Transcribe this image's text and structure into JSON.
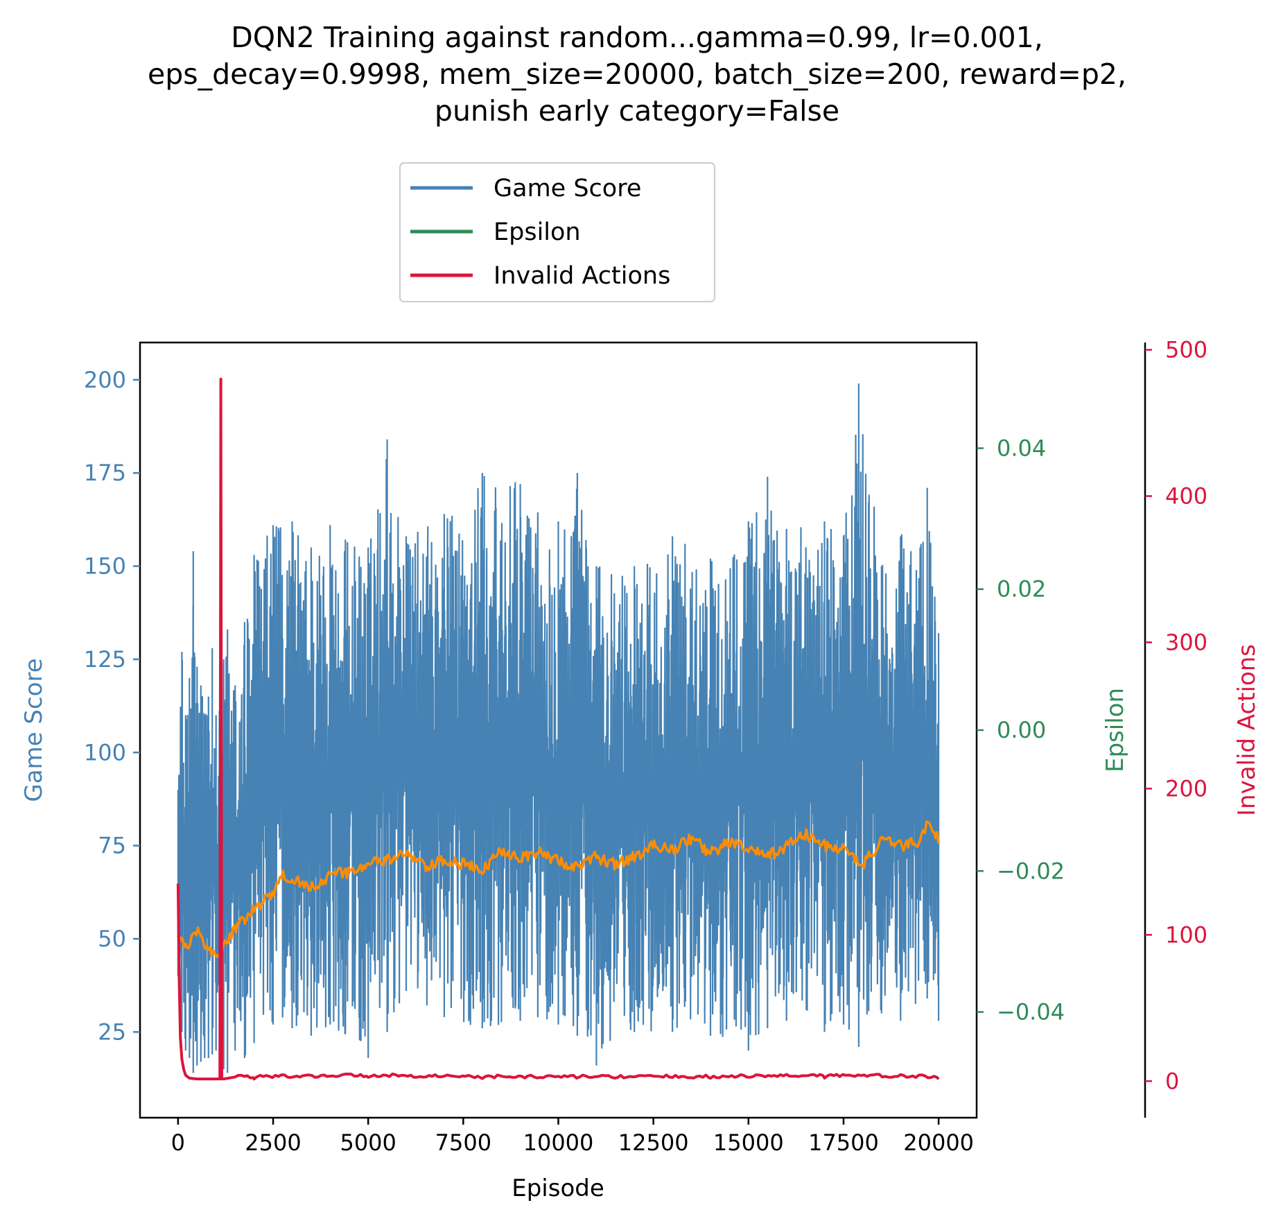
{
  "title_lines": [
    "DQN2 Training against random...gamma=0.99, lr=0.001,",
    "eps_decay=0.9998, mem_size=20000, batch_size=200, reward=p2,",
    "punish early category=False"
  ],
  "colors": {
    "game_score": "#4682b4",
    "epsilon": "#2e8b57",
    "invalid_actions": "#dc143c",
    "moving_average": "#ff8c00"
  },
  "chart_data": {
    "type": "line",
    "title": "DQN2 Training against random...gamma=0.99, lr=0.001, eps_decay=0.9998, mem_size=20000, batch_size=200, reward=p2, punish early category=False",
    "xlabel": "Episode",
    "xlim": [
      -1000,
      21000
    ],
    "x_ticks": [
      0,
      2500,
      5000,
      7500,
      10000,
      12500,
      15000,
      17500,
      20000
    ],
    "x_tick_labels": [
      "0",
      "2500",
      "5000",
      "7500",
      "10000",
      "12500",
      "15000",
      "17500",
      "20000"
    ],
    "axes": {
      "left": {
        "label": "Game Score",
        "ylim": [
          2,
          210
        ],
        "ticks": [
          25,
          50,
          75,
          100,
          125,
          150,
          175,
          200
        ],
        "tick_labels": [
          "25",
          "50",
          "75",
          "100",
          "125",
          "150",
          "175",
          "200"
        ]
      },
      "right1": {
        "label": "Epsilon",
        "ylim": [
          -0.055,
          0.055
        ],
        "ticks": [
          -0.04,
          -0.02,
          0.0,
          0.02,
          0.04
        ],
        "tick_labels": [
          "−0.04",
          "−0.02",
          "0.00",
          "0.02",
          "0.04"
        ]
      },
      "right2": {
        "label": "Invalid Actions",
        "ylim": [
          -25,
          505
        ],
        "ticks": [
          0,
          100,
          200,
          300,
          400,
          500
        ],
        "tick_labels": [
          "0",
          "100",
          "200",
          "300",
          "400",
          "500"
        ]
      }
    },
    "legend": {
      "position": "above plot, center",
      "entries": [
        "Game Score",
        "Epsilon",
        "Invalid Actions"
      ]
    },
    "series": [
      {
        "name": "Game Score",
        "axis": "left",
        "x": [
          0,
          100,
          200,
          300,
          400,
          500,
          600,
          700,
          800,
          900,
          1000,
          1100,
          1200,
          1300,
          1500,
          1750,
          2000,
          2500,
          3000,
          3500,
          4000,
          5000,
          5500,
          6000,
          7000,
          8000,
          9000,
          10000,
          10500,
          11000,
          12000,
          13000,
          14000,
          15000,
          15500,
          16000,
          17000,
          17500,
          17900,
          18500,
          19000,
          19700,
          20000
        ],
        "upper_envelope": [
          90,
          127,
          110,
          120,
          154,
          123,
          118,
          110,
          115,
          128,
          110,
          112,
          125,
          133,
          118,
          135,
          153,
          161,
          162,
          155,
          161,
          155,
          184,
          158,
          164,
          175,
          172,
          162,
          175,
          150,
          150,
          158,
          152,
          162,
          174,
          160,
          162,
          158,
          199,
          150,
          158,
          171,
          132
        ],
        "lower_envelope": [
          40,
          25,
          20,
          18,
          14,
          16,
          17,
          18,
          18,
          19,
          20,
          21,
          15,
          14,
          20,
          18,
          22,
          27,
          26,
          24,
          27,
          18,
          25,
          36,
          29,
          26,
          28,
          27,
          24,
          16,
          25,
          25,
          24,
          20,
          26,
          28,
          25,
          27,
          21,
          30,
          28,
          34,
          28
        ]
      },
      {
        "name": "",
        "axis": "left",
        "x": [
          0,
          250,
          500,
          750,
          1000,
          1250,
          1500,
          1750,
          2000,
          2500,
          2750,
          3000,
          3500,
          4000,
          4500,
          5000,
          5500,
          6000,
          6500,
          7000,
          7500,
          8000,
          8500,
          9000,
          9500,
          10000,
          10500,
          11000,
          11500,
          12000,
          12500,
          13000,
          13500,
          14000,
          14500,
          15000,
          15500,
          16000,
          16500,
          17000,
          17500,
          18000,
          18500,
          19000,
          19500,
          19750,
          20000
        ],
        "values": [
          50,
          47,
          53,
          48,
          45,
          49,
          53,
          55,
          58,
          62,
          67,
          66,
          64,
          67,
          68,
          70,
          71,
          73,
          69,
          71,
          70,
          68,
          74,
          72,
          73,
          71,
          69,
          72,
          70,
          72,
          75,
          74,
          77,
          73,
          76,
          74,
          72,
          75,
          78,
          75,
          74,
          70,
          76,
          75,
          76,
          82,
          77
        ]
      },
      {
        "name": "Invalid Actions",
        "axis": "right2",
        "x": [
          0,
          30,
          60,
          100,
          150,
          200,
          300,
          500,
          800,
          1100,
          1125,
          1150,
          1175,
          1200,
          1500,
          2000,
          5000,
          8000,
          11000,
          14000,
          17000,
          20000
        ],
        "values": [
          135,
          70,
          30,
          15,
          8,
          4,
          2,
          1.5,
          1.5,
          1.5,
          480,
          1.5,
          1.5,
          1.5,
          2,
          2,
          3,
          2,
          2,
          2,
          3,
          2
        ]
      }
    ]
  }
}
